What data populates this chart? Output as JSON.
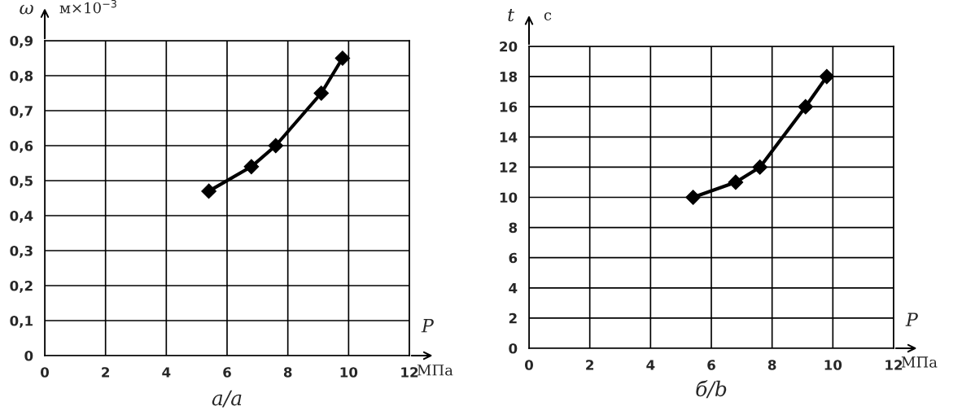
{
  "chart_data": [
    {
      "type": "line",
      "title": "а/a",
      "xlabel": "P",
      "ylabel": "ω",
      "annotations": [
        "м×10$^{−3}$",
        "МПа"
      ],
      "x": [
        5.4,
        6.8,
        7.6,
        9.1,
        9.8
      ],
      "series": [
        {
          "color": "#000000",
          "values": [
            0.47,
            0.54,
            0.6,
            0.75,
            0.85
          ]
        }
      ],
      "xlim": [
        0,
        12
      ],
      "xticks": [
        0,
        2,
        4,
        6,
        8,
        10,
        12
      ],
      "ylim": [
        0,
        0.9
      ],
      "yticks": [
        0,
        {
          "value": 0.1,
          "label": "0,1"
        },
        {
          "value": 0.2,
          "label": "0,2"
        },
        {
          "value": 0.3,
          "label": "0,3"
        },
        {
          "value": 0.4,
          "label": "0,4"
        },
        {
          "value": 0.5,
          "label": "0,5"
        },
        {
          "value": 0.6,
          "label": "0,6"
        },
        {
          "value": 0.7,
          "label": "0,7"
        },
        {
          "value": 0.8,
          "label": "0,8"
        },
        {
          "value": 0.9,
          "label": "0,9"
        }
      ],
      "grid": true,
      "marker": "diamond",
      "line_style": "solid"
    },
    {
      "type": "line",
      "title": "б/b",
      "xlabel": "P",
      "ylabel": "t",
      "annotations": [
        "с",
        "МПа"
      ],
      "x": [
        5.4,
        6.8,
        7.6,
        9.1,
        9.8
      ],
      "series": [
        {
          "color": "#000000",
          "values": [
            10,
            11,
            12,
            16,
            18
          ]
        }
      ],
      "xlim": [
        0,
        12
      ],
      "xticks": [
        0,
        2,
        4,
        6,
        8,
        10,
        12
      ],
      "ylim": [
        0,
        20
      ],
      "yticks": [
        0,
        2,
        4,
        6,
        8,
        10,
        12,
        14,
        16,
        18,
        20
      ],
      "grid": true,
      "marker": "diamond",
      "line_style": "solid"
    }
  ]
}
